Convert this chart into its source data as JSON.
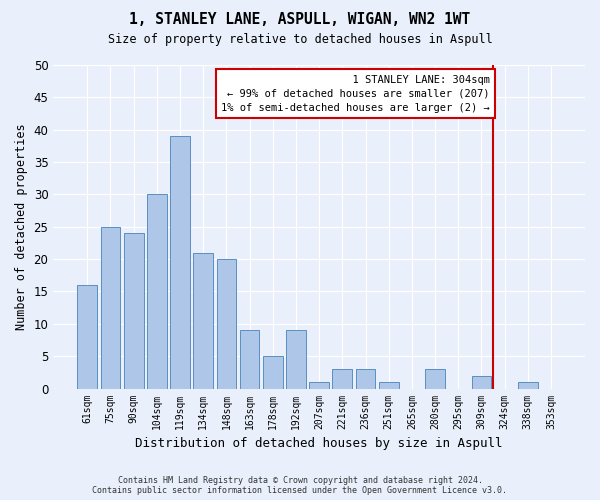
{
  "title": "1, STANLEY LANE, ASPULL, WIGAN, WN2 1WT",
  "subtitle": "Size of property relative to detached houses in Aspull",
  "xlabel": "Distribution of detached houses by size in Aspull",
  "ylabel": "Number of detached properties",
  "footer_line1": "Contains HM Land Registry data © Crown copyright and database right 2024.",
  "footer_line2": "Contains public sector information licensed under the Open Government Licence v3.0.",
  "categories": [
    "61sqm",
    "75sqm",
    "90sqm",
    "104sqm",
    "119sqm",
    "134sqm",
    "148sqm",
    "163sqm",
    "178sqm",
    "192sqm",
    "207sqm",
    "221sqm",
    "236sqm",
    "251sqm",
    "265sqm",
    "280sqm",
    "295sqm",
    "309sqm",
    "324sqm",
    "338sqm",
    "353sqm"
  ],
  "values": [
    16,
    25,
    24,
    30,
    39,
    21,
    20,
    9,
    5,
    9,
    1,
    3,
    3,
    1,
    0,
    3,
    0,
    2,
    0,
    1,
    0
  ],
  "bar_color": "#aec6e8",
  "bar_edge_color": "#5a8fc0",
  "background_color": "#eaf0fb",
  "grid_color": "#ffffff",
  "annotation_text": "  1 STANLEY LANE: 304sqm\n← 99% of detached houses are smaller (207)\n1% of semi-detached houses are larger (2) →",
  "vline_index": 17,
  "vline_color": "#cc0000",
  "annotation_box_edge_color": "#cc0000",
  "ylim": [
    0,
    50
  ],
  "yticks": [
    0,
    5,
    10,
    15,
    20,
    25,
    30,
    35,
    40,
    45,
    50
  ]
}
